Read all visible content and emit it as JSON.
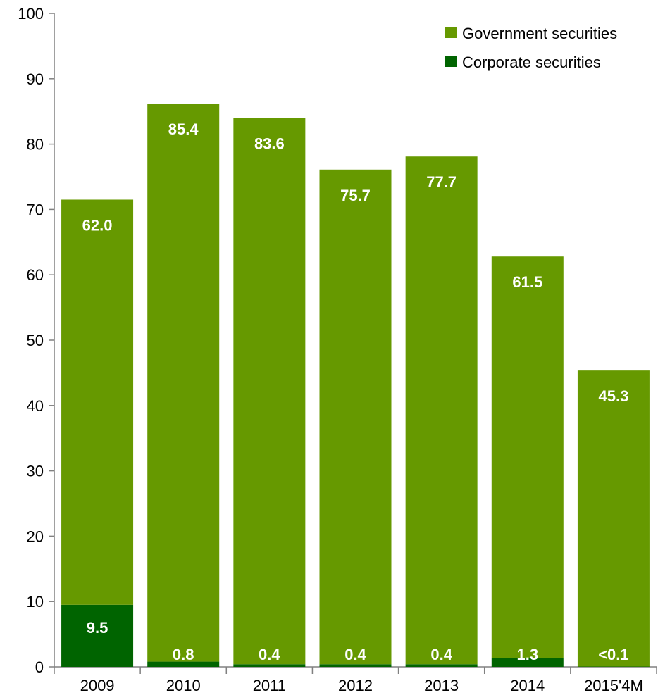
{
  "chart_data": {
    "type": "bar",
    "stacked": true,
    "categories": [
      "2009",
      "2010",
      "2011",
      "2012",
      "2013",
      "2014",
      "2015'4M"
    ],
    "series": [
      {
        "name": "Corporate securities",
        "color": "#006400",
        "values": [
          9.5,
          0.8,
          0.4,
          0.4,
          0.4,
          1.3,
          0.05
        ],
        "labels": [
          "9.5",
          "0.8",
          "0.4",
          "0.4",
          "0.4",
          "1.3",
          "<0.1"
        ]
      },
      {
        "name": "Government securities",
        "color": "#669900",
        "values": [
          62.0,
          85.4,
          83.6,
          75.7,
          77.7,
          61.5,
          45.3
        ],
        "labels": [
          "62.0",
          "85.4",
          "83.6",
          "75.7",
          "77.7",
          "61.5",
          "45.3"
        ]
      }
    ],
    "ylim": [
      0,
      100
    ],
    "yticks": [
      0,
      10,
      20,
      30,
      40,
      50,
      60,
      70,
      80,
      90,
      100
    ],
    "legend": {
      "position": "top-right",
      "entries": [
        "Government securities",
        "Corporate securities"
      ]
    },
    "grid": false
  }
}
